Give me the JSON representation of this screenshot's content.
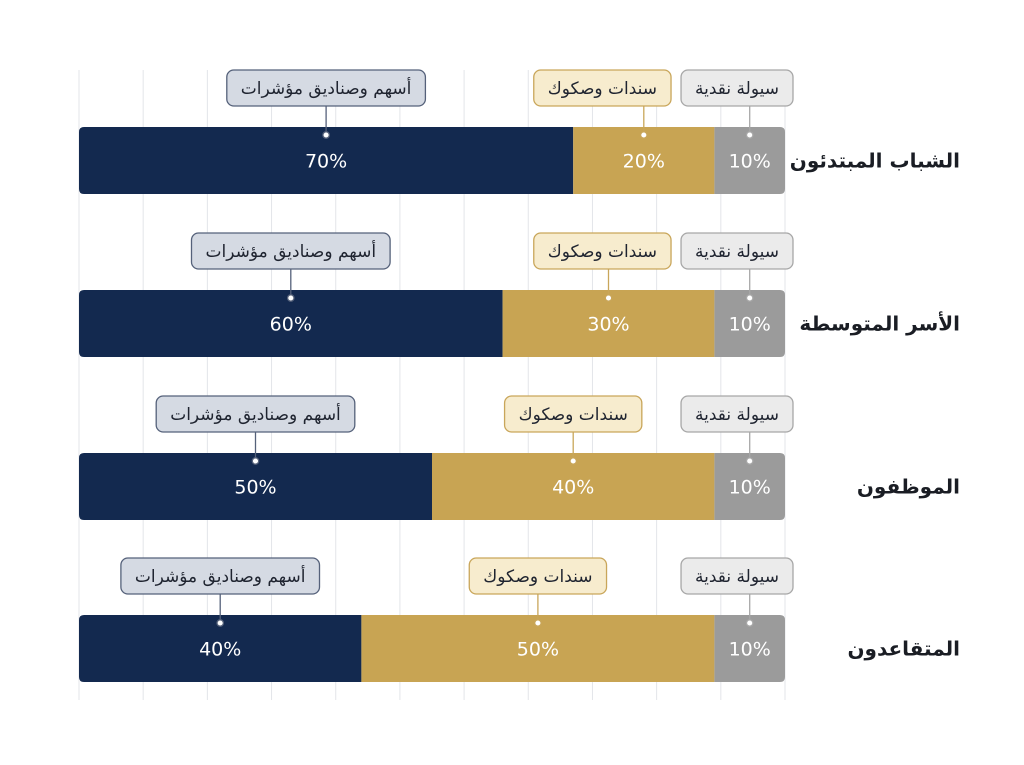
{
  "chart_data": {
    "type": "bar",
    "orientation": "horizontal",
    "stacked": true,
    "categories": [
      "الشباب المبتدئون",
      "الأسر المتوسطة",
      "الموظفون",
      "المتقاعدون"
    ],
    "series": [
      {
        "name": "أسهم وصناديق مؤشرات",
        "values": [
          70,
          60,
          50,
          40
        ],
        "color": "#13294f",
        "label_color": "#d5dae3"
      },
      {
        "name": "سندات وصكوك",
        "values": [
          20,
          30,
          40,
          50
        ],
        "color": "#c8a453",
        "label_color": "#f7ecce"
      },
      {
        "name": "سيولة نقدية",
        "values": [
          10,
          10,
          10,
          10
        ],
        "color": "#9b9b9b",
        "label_color": "#ebebeb"
      }
    ],
    "value_suffix": "%",
    "xlim": [
      0,
      100
    ],
    "grid": true,
    "legend": "callouts above bars"
  }
}
